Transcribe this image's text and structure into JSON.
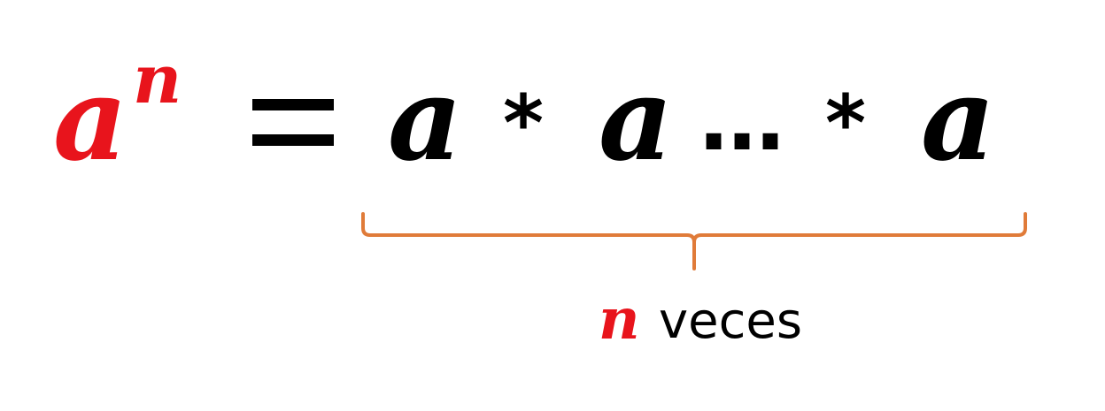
{
  "formula": {
    "base": "a",
    "exponent": "n",
    "equals": "=",
    "term_1": "a",
    "operator_1": "*",
    "term_2": "a",
    "ellipsis": "…",
    "operator_2": "*",
    "term_3": "a"
  },
  "annotation": {
    "variable": "n",
    "label": "veces"
  },
  "colors": {
    "highlight": "#e8141c",
    "text": "#000000",
    "brace": "#e07b39"
  }
}
